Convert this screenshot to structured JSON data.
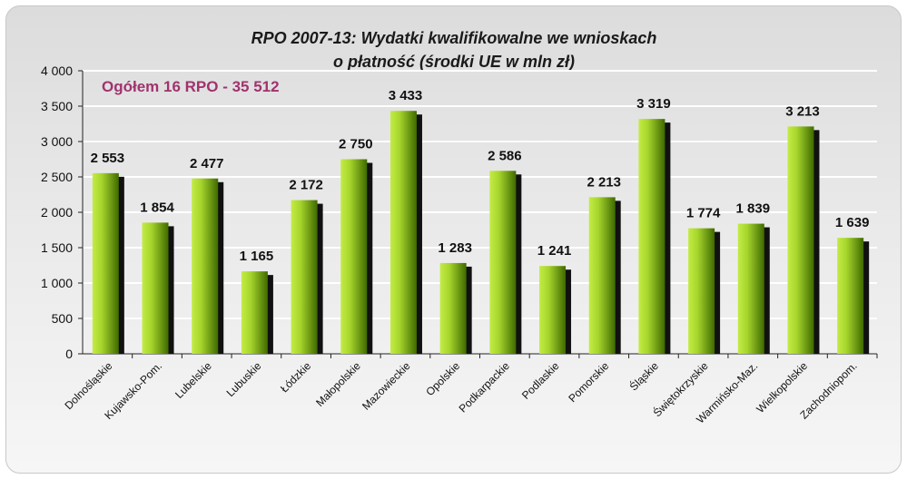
{
  "chart_data": {
    "type": "bar",
    "title_lines": [
      "RPO 2007-13: Wydatki kwalifikowalne we wnioskach",
      "o płatność (środki UE w mln zł)"
    ],
    "annotation": "Ogółem 16 RPO - 35 512",
    "categories": [
      "Dolnośląskie",
      "Kujawsko-Pom.",
      "Lubelskie",
      "Lubuskie",
      "Łódzkie",
      "Małopolskie",
      "Mazowieckie",
      "Opolskie",
      "Podkarpackie",
      "Podlaskie",
      "Pomorskie",
      "Śląskie",
      "Świętokrzyskie",
      "Warmińsko-Maz.",
      "Wielkopolskie",
      "Zachodniopom."
    ],
    "values": [
      2553,
      1854,
      2477,
      1165,
      2172,
      2750,
      3433,
      1283,
      2586,
      1241,
      2213,
      3319,
      1774,
      1839,
      3213,
      1639
    ],
    "value_labels": [
      "2 553",
      "1 854",
      "2 477",
      "1 165",
      "2 172",
      "2 750",
      "3 433",
      "1 283",
      "2 586",
      "1 241",
      "2 213",
      "3 319",
      "1 774",
      "1 839",
      "3 213",
      "1 639"
    ],
    "yticks": [
      0,
      500,
      1000,
      1500,
      2000,
      2500,
      3000,
      3500,
      4000
    ],
    "ytick_labels": [
      "0",
      "500",
      "1 000",
      "1 500",
      "2 000",
      "2 500",
      "3 000",
      "3 500",
      "4 000"
    ],
    "ylim": [
      0,
      4000
    ],
    "grid": true,
    "legend": "none",
    "colors": {
      "bar_light": "#b5e23a",
      "bar_dark": "#3f6a00",
      "shadow": "#111111",
      "grid": "#ffffff",
      "annotation": "#a0336e"
    }
  }
}
